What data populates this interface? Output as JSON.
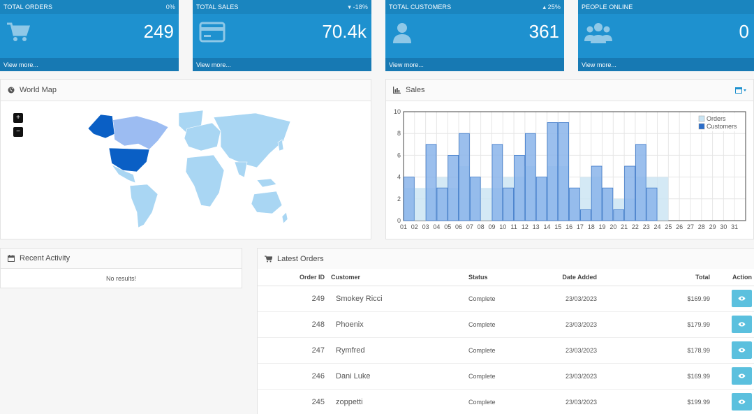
{
  "tiles": [
    {
      "title": "TOTAL ORDERS",
      "delta": "0%",
      "value": "249",
      "footer": "View more...",
      "icon": "shopping-cart-icon"
    },
    {
      "title": "TOTAL SALES",
      "delta": "▾ -18%",
      "value": "70.4k",
      "footer": "View more...",
      "icon": "credit-card-icon"
    },
    {
      "title": "TOTAL CUSTOMERS",
      "delta": "▴ 25%",
      "value": "361",
      "footer": "View more...",
      "icon": "user-icon"
    },
    {
      "title": "PEOPLE ONLINE",
      "delta": "",
      "value": "0",
      "footer": "View more...",
      "icon": "users-icon"
    }
  ],
  "world_map": {
    "title": "World Map",
    "zoom_in": "+",
    "zoom_out": "−"
  },
  "sales": {
    "title": "Sales",
    "legend": [
      "Orders",
      "Customers"
    ]
  },
  "recent_activity": {
    "title": "Recent Activity",
    "empty": "No results!"
  },
  "latest_orders": {
    "title": "Latest Orders",
    "columns": {
      "order_id": "Order ID",
      "customer": "Customer",
      "status": "Status",
      "date": "Date Added",
      "total": "Total",
      "action": "Action"
    },
    "rows": [
      {
        "id": "249",
        "customer": "Smokey Ricci",
        "status": "Complete",
        "date": "23/03/2023",
        "total": "$169.99"
      },
      {
        "id": "248",
        "customer": "Phoenix",
        "status": "Complete",
        "date": "23/03/2023",
        "total": "$179.99"
      },
      {
        "id": "247",
        "customer": "Rymfred",
        "status": "Complete",
        "date": "23/03/2023",
        "total": "$178.99"
      },
      {
        "id": "246",
        "customer": "Dani Luke",
        "status": "Complete",
        "date": "23/03/2023",
        "total": "$169.99"
      },
      {
        "id": "245",
        "customer": "zoppetti",
        "status": "Complete",
        "date": "23/03/2023",
        "total": "$199.99"
      }
    ]
  },
  "colors": {
    "tile": "#1e91cf",
    "tile_dark": "#1779b3",
    "orders_bar": "#c9e4f3",
    "customers_bar": "#8ab4ea",
    "us_map": "#0a5fc5",
    "canada_map": "#9cbcf2",
    "land": "#a9d6f3",
    "view_button": "#5bc0de"
  },
  "chart_data": {
    "type": "bar",
    "categories": [
      "01",
      "02",
      "03",
      "04",
      "05",
      "06",
      "07",
      "08",
      "09",
      "10",
      "11",
      "12",
      "13",
      "14",
      "15",
      "16",
      "17",
      "18",
      "19",
      "20",
      "21",
      "22",
      "23",
      "24",
      "25",
      "26",
      "27",
      "28",
      "29",
      "30",
      "31"
    ],
    "series": [
      {
        "name": "Orders",
        "values": [
          3,
          3,
          3,
          4,
          3,
          5,
          4,
          3,
          3,
          4,
          4,
          5,
          4,
          5,
          5,
          3,
          4,
          4,
          3,
          2,
          2,
          4,
          4,
          4,
          0,
          0,
          0,
          0,
          0,
          0,
          0
        ]
      },
      {
        "name": "Customers",
        "values": [
          4,
          0,
          7,
          3,
          6,
          8,
          4,
          0,
          7,
          3,
          6,
          8,
          4,
          9,
          9,
          3,
          1,
          5,
          3,
          1,
          5,
          7,
          3,
          0,
          0,
          0,
          0,
          0,
          0,
          0,
          0
        ]
      }
    ],
    "ylim": [
      0,
      10
    ],
    "yticks": [
      "0",
      "2",
      "4",
      "6",
      "8",
      "10"
    ],
    "legend_position": "top-right",
    "grid": true
  }
}
